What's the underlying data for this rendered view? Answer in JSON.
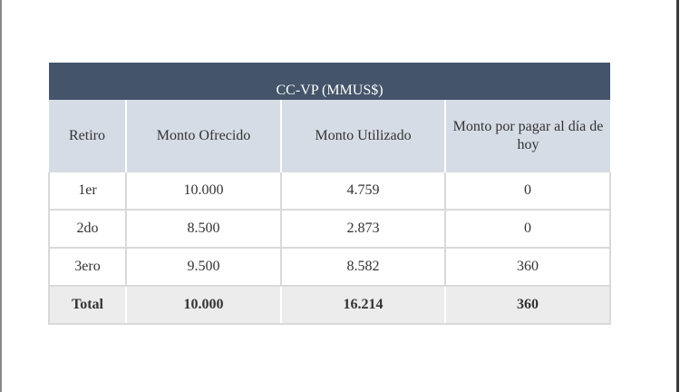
{
  "table": {
    "title": "CC-VP (MMUS$)",
    "headers": [
      "Retiro",
      "Monto Ofrecido",
      "Monto Utilizado",
      "Monto por pagar al día de hoy"
    ],
    "rows": [
      [
        "1er",
        "10.000",
        "4.759",
        "0"
      ],
      [
        "2do",
        "8.500",
        "2.873",
        "0"
      ],
      [
        "3ero",
        "9.500",
        "8.582",
        "360"
      ]
    ],
    "total": [
      "Total",
      "10.000",
      "16.214",
      "360"
    ]
  },
  "colors": {
    "title_bg": "#44546a",
    "header_bg": "#d6dce5",
    "total_bg": "#ececec"
  }
}
